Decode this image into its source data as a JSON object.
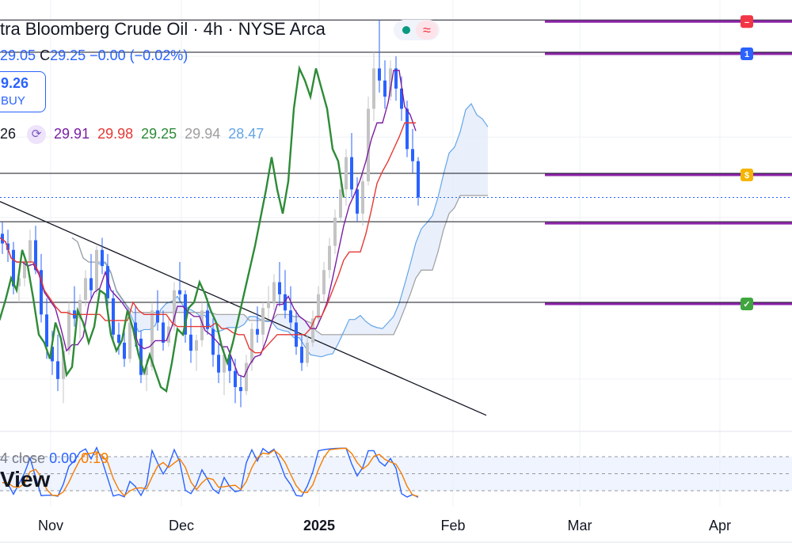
{
  "header": {
    "title": "tra Bloomberg Crude Oil · 4h · NYSE Arca",
    "ohlc_partial": "29.05",
    "close_label": "C",
    "close_value": "29.25",
    "change": "−0.00 (−0.02%)"
  },
  "buy_box": {
    "price": "9.26",
    "label": "BUY"
  },
  "indicator_values": {
    "first": "26",
    "v1": "29.91",
    "v2": "29.98",
    "v3": "29.25",
    "v4": "29.94",
    "v5": "28.47"
  },
  "oscillator": {
    "label": "4 close",
    "v1": "0.00",
    "v2": "0.19"
  },
  "watermark": "View",
  "colors": {
    "tenkan": "#7b1fa2",
    "kijun": "#e53935",
    "chikou": "#2e8b37",
    "span_b": "#9e9e9e",
    "span_a": "#64a6e8",
    "up_candle": "#c4c4c4",
    "down_candle": "#2962ff",
    "stoch_k": "#2962ff",
    "stoch_d": "#f57c00",
    "level_line": "#8e24aa"
  },
  "chart_data": {
    "type": "candlestick",
    "interval": "4h",
    "x_ticks": [
      "Nov",
      "Dec",
      "2025",
      "Feb",
      "Mar",
      "Apr"
    ],
    "y_range": [
      26.4,
      31.6
    ],
    "candles_daily_ohlc": [
      [
        28.8,
        28.95,
        28.55,
        28.68
      ],
      [
        28.68,
        28.85,
        28.45,
        28.6
      ],
      [
        28.6,
        28.7,
        28.05,
        28.15
      ],
      [
        28.15,
        28.35,
        27.95,
        28.25
      ],
      [
        28.25,
        28.55,
        28.15,
        28.45
      ],
      [
        28.45,
        28.85,
        28.4,
        28.72
      ],
      [
        28.72,
        28.9,
        28.3,
        28.35
      ],
      [
        28.35,
        28.55,
        27.7,
        27.8
      ],
      [
        27.8,
        28.0,
        27.25,
        27.4
      ],
      [
        27.4,
        27.6,
        27.05,
        27.22
      ],
      [
        27.22,
        27.55,
        26.85,
        27.0
      ],
      [
        27.0,
        27.45,
        26.7,
        27.35
      ],
      [
        27.35,
        27.95,
        27.3,
        27.85
      ],
      [
        27.85,
        28.15,
        27.65,
        27.75
      ],
      [
        27.75,
        28.05,
        27.5,
        27.98
      ],
      [
        27.98,
        28.35,
        27.9,
        28.25
      ],
      [
        28.25,
        28.55,
        28.0,
        28.1
      ],
      [
        28.1,
        28.65,
        28.05,
        28.6
      ],
      [
        28.6,
        28.75,
        28.3,
        28.4
      ],
      [
        28.4,
        28.55,
        27.9,
        28.0
      ],
      [
        28.0,
        28.1,
        27.45,
        27.55
      ],
      [
        27.55,
        27.7,
        27.3,
        27.45
      ],
      [
        27.45,
        27.65,
        27.15,
        27.25
      ],
      [
        27.25,
        27.8,
        27.2,
        27.7
      ],
      [
        27.7,
        27.9,
        27.4,
        27.5
      ],
      [
        27.5,
        27.6,
        26.95,
        27.05
      ],
      [
        27.05,
        27.25,
        26.85,
        27.15
      ],
      [
        27.15,
        27.95,
        27.1,
        27.85
      ],
      [
        27.85,
        28.1,
        27.6,
        27.7
      ],
      [
        27.7,
        27.85,
        27.35,
        27.45
      ],
      [
        27.45,
        27.75,
        27.4,
        27.65
      ],
      [
        27.65,
        28.2,
        27.6,
        28.1
      ],
      [
        28.1,
        28.45,
        27.95,
        28.05
      ],
      [
        28.05,
        28.1,
        27.45,
        27.55
      ],
      [
        27.55,
        27.75,
        27.2,
        27.35
      ],
      [
        27.35,
        27.55,
        27.1,
        27.48
      ],
      [
        27.48,
        27.95,
        27.4,
        27.85
      ],
      [
        27.85,
        28.0,
        27.55,
        27.62
      ],
      [
        27.62,
        27.75,
        27.15,
        27.3
      ],
      [
        27.3,
        27.45,
        26.95,
        27.08
      ],
      [
        27.08,
        27.4,
        26.8,
        27.3
      ],
      [
        27.3,
        27.35,
        26.95,
        27.1
      ],
      [
        27.1,
        27.25,
        26.7,
        26.9
      ],
      [
        26.9,
        27.05,
        26.65,
        26.85
      ],
      [
        26.85,
        27.3,
        26.8,
        27.2
      ],
      [
        27.2,
        27.7,
        27.1,
        27.62
      ],
      [
        27.62,
        27.9,
        27.45,
        27.55
      ],
      [
        27.55,
        27.95,
        27.4,
        27.88
      ],
      [
        27.88,
        28.15,
        27.75,
        27.95
      ],
      [
        27.95,
        28.3,
        27.85,
        28.2
      ],
      [
        28.2,
        28.45,
        27.9,
        28.05
      ],
      [
        28.05,
        28.35,
        27.75,
        27.85
      ],
      [
        27.85,
        28.15,
        27.6,
        27.7
      ],
      [
        27.7,
        27.85,
        27.3,
        27.4
      ],
      [
        27.4,
        27.55,
        27.1,
        27.2
      ],
      [
        27.2,
        27.55,
        27.15,
        27.45
      ],
      [
        27.45,
        27.85,
        27.4,
        27.75
      ],
      [
        27.75,
        28.15,
        27.7,
        28.05
      ],
      [
        28.05,
        28.45,
        27.95,
        28.35
      ],
      [
        28.35,
        28.75,
        28.25,
        28.65
      ],
      [
        28.65,
        29.1,
        28.55,
        29.0
      ],
      [
        29.0,
        29.45,
        28.95,
        29.35
      ],
      [
        29.35,
        29.85,
        29.15,
        29.75
      ],
      [
        29.75,
        30.05,
        29.25,
        29.35
      ],
      [
        29.35,
        29.5,
        28.95,
        29.05
      ],
      [
        29.05,
        29.55,
        28.9,
        29.45
      ],
      [
        29.45,
        30.5,
        29.4,
        30.35
      ],
      [
        30.35,
        31.05,
        30.2,
        30.85
      ],
      [
        30.85,
        31.45,
        30.55,
        30.7
      ],
      [
        30.7,
        30.95,
        30.35,
        30.5
      ],
      [
        30.5,
        30.95,
        30.45,
        30.85
      ],
      [
        30.85,
        31.0,
        30.45,
        30.6
      ],
      [
        30.6,
        30.75,
        30.2,
        30.35
      ],
      [
        30.35,
        30.45,
        29.75,
        29.85
      ],
      [
        29.85,
        30.1,
        29.55,
        29.7
      ],
      [
        29.7,
        29.75,
        29.15,
        29.25
      ]
    ],
    "levels": [
      31.45,
      31.05,
      29.55,
      28.95,
      27.95
    ],
    "overlay_values": {
      "tenkan": "29.91",
      "kijun": "29.98",
      "chikou": "29.25",
      "span_b": "29.94",
      "span_a": "28.47"
    },
    "oscillator": {
      "name": "Stochastic",
      "k": 0.0,
      "d": 0.19,
      "upper": 80,
      "lower": 20
    },
    "grid": true
  }
}
